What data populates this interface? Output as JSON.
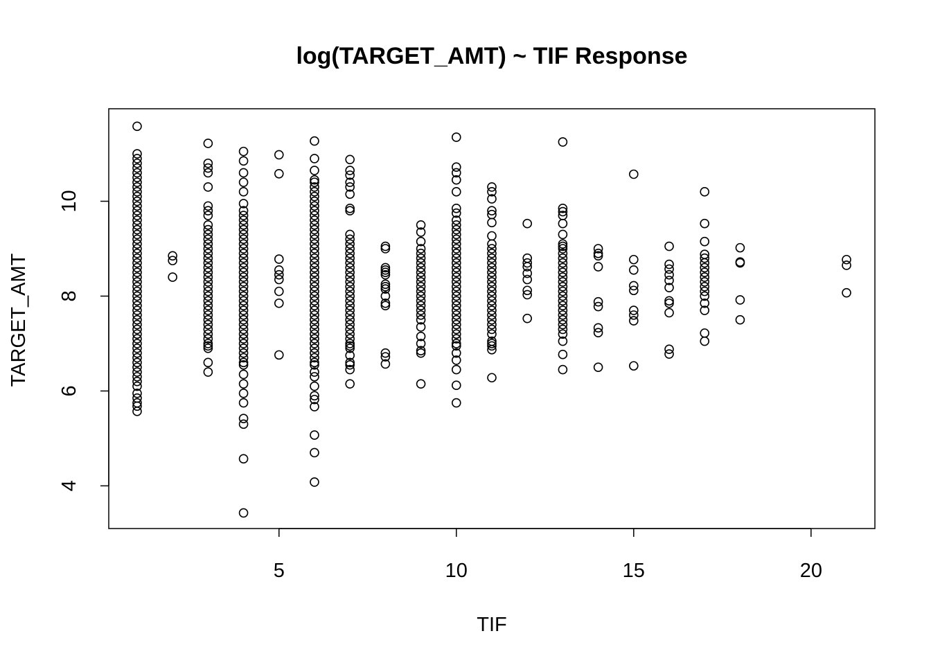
{
  "chart_data": {
    "type": "scatter",
    "title": "log(TARGET_AMT) ~ TIF Response",
    "xlabel": "TIF",
    "ylabel": "TARGET_AMT",
    "xlim": [
      0.2,
      21.8
    ],
    "ylim": [
      3.1,
      11.95
    ],
    "xticks": [
      5,
      10,
      15,
      20
    ],
    "yticks": [
      4,
      6,
      8,
      10
    ],
    "grid": false,
    "marker": "open-circle",
    "groups": [
      {
        "x": 1,
        "y": [
          11.58,
          11.0,
          10.9,
          10.8,
          10.7,
          10.6,
          10.5,
          10.4,
          10.3,
          10.2,
          10.1,
          10.0,
          9.9,
          9.8,
          9.7,
          9.6,
          9.5,
          9.4,
          9.3,
          9.2,
          9.1,
          9.0,
          8.9,
          8.8,
          8.7,
          8.6,
          8.5,
          8.4,
          8.3,
          8.2,
          8.1,
          8.0,
          7.9,
          7.8,
          7.7,
          7.6,
          7.5,
          7.4,
          7.3,
          7.2,
          7.1,
          7.0,
          6.9,
          6.8,
          6.7,
          6.6,
          6.5,
          6.4,
          6.3,
          6.2,
          6.1,
          5.95,
          5.85,
          5.75,
          5.68,
          5.57
        ]
      },
      {
        "x": 2,
        "y": [
          8.85,
          8.75,
          8.4
        ]
      },
      {
        "x": 3,
        "y": [
          11.22,
          10.8,
          10.7,
          10.6,
          10.3,
          9.9,
          9.8,
          9.7,
          9.5,
          9.4,
          9.3,
          9.2,
          9.1,
          9.0,
          8.9,
          8.8,
          8.7,
          8.6,
          8.5,
          8.4,
          8.3,
          8.2,
          8.1,
          8.0,
          7.9,
          7.8,
          7.7,
          7.6,
          7.5,
          7.4,
          7.3,
          7.2,
          7.1,
          7.0,
          6.95,
          6.9,
          6.6,
          6.4
        ]
      },
      {
        "x": 4,
        "y": [
          11.05,
          10.85,
          10.6,
          10.4,
          10.2,
          9.95,
          9.8,
          9.7,
          9.6,
          9.5,
          9.4,
          9.3,
          9.2,
          9.1,
          9.0,
          8.9,
          8.8,
          8.7,
          8.6,
          8.5,
          8.4,
          8.3,
          8.2,
          8.1,
          8.0,
          7.9,
          7.8,
          7.7,
          7.6,
          7.5,
          7.4,
          7.3,
          7.2,
          7.1,
          7.0,
          6.9,
          6.8,
          6.7,
          6.6,
          6.55,
          6.35,
          6.15,
          5.95,
          5.75,
          5.42,
          5.3,
          4.57,
          3.43
        ]
      },
      {
        "x": 5,
        "y": [
          10.98,
          10.58,
          8.78,
          8.55,
          8.45,
          8.35,
          8.1,
          7.85,
          6.76
        ]
      },
      {
        "x": 6,
        "y": [
          11.27,
          10.9,
          10.65,
          10.45,
          10.4,
          10.3,
          10.2,
          10.1,
          10.0,
          9.9,
          9.8,
          9.7,
          9.6,
          9.5,
          9.4,
          9.3,
          9.2,
          9.1,
          9.0,
          8.9,
          8.8,
          8.7,
          8.6,
          8.5,
          8.4,
          8.3,
          8.2,
          8.1,
          8.0,
          7.9,
          7.8,
          7.7,
          7.6,
          7.5,
          7.4,
          7.3,
          7.2,
          7.1,
          7.0,
          6.9,
          6.8,
          6.7,
          6.6,
          6.55,
          6.4,
          6.3,
          6.1,
          5.9,
          5.82,
          5.67,
          5.07,
          4.7,
          4.08
        ]
      },
      {
        "x": 7,
        "y": [
          10.88,
          10.65,
          10.55,
          10.4,
          10.3,
          10.15,
          9.85,
          9.8,
          9.3,
          9.2,
          9.1,
          9.0,
          8.9,
          8.8,
          8.7,
          8.6,
          8.5,
          8.4,
          8.3,
          8.2,
          8.1,
          8.0,
          7.9,
          7.8,
          7.7,
          7.6,
          7.5,
          7.4,
          7.3,
          7.2,
          7.1,
          7.0,
          6.95,
          6.9,
          6.75,
          6.6,
          6.55,
          6.45,
          6.15
        ]
      },
      {
        "x": 8,
        "y": [
          9.05,
          9.0,
          8.6,
          8.55,
          8.5,
          8.45,
          8.25,
          8.2,
          8.15,
          8.0,
          7.85,
          7.8,
          6.8,
          6.72,
          6.57
        ]
      },
      {
        "x": 9,
        "y": [
          9.5,
          9.35,
          9.15,
          9.0,
          8.9,
          8.8,
          8.7,
          8.6,
          8.5,
          8.4,
          8.3,
          8.2,
          8.1,
          8.0,
          7.9,
          7.8,
          7.7,
          7.6,
          7.5,
          7.35,
          7.15,
          7.0,
          6.85,
          6.8,
          6.15
        ]
      },
      {
        "x": 10,
        "y": [
          11.35,
          10.72,
          10.6,
          10.45,
          10.2,
          9.85,
          9.75,
          9.6,
          9.5,
          9.4,
          9.3,
          9.2,
          9.1,
          9.0,
          8.9,
          8.8,
          8.7,
          8.6,
          8.5,
          8.4,
          8.3,
          8.2,
          8.1,
          8.0,
          7.9,
          7.8,
          7.7,
          7.6,
          7.5,
          7.4,
          7.3,
          7.2,
          7.1,
          7.0,
          6.95,
          6.8,
          6.65,
          6.45,
          6.12,
          5.75
        ]
      },
      {
        "x": 11,
        "y": [
          10.3,
          10.2,
          10.05,
          9.8,
          9.72,
          9.55,
          9.27,
          9.1,
          9.0,
          8.9,
          8.8,
          8.7,
          8.6,
          8.5,
          8.4,
          8.3,
          8.2,
          8.1,
          8.0,
          7.9,
          7.8,
          7.7,
          7.6,
          7.5,
          7.4,
          7.3,
          7.2,
          7.05,
          7.0,
          6.95,
          6.87,
          6.28
        ]
      },
      {
        "x": 12,
        "y": [
          9.53,
          8.8,
          8.7,
          8.62,
          8.48,
          8.35,
          8.12,
          8.03,
          7.53
        ]
      },
      {
        "x": 13,
        "y": [
          11.25,
          9.85,
          9.78,
          9.7,
          9.53,
          9.3,
          9.1,
          9.05,
          9.0,
          8.9,
          8.8,
          8.7,
          8.6,
          8.5,
          8.4,
          8.3,
          8.2,
          8.1,
          8.0,
          7.9,
          7.8,
          7.7,
          7.6,
          7.5,
          7.4,
          7.3,
          7.2,
          7.05,
          6.77,
          6.45
        ]
      },
      {
        "x": 14,
        "y": [
          9.0,
          8.9,
          8.85,
          8.62,
          7.88,
          7.78,
          7.33,
          7.23,
          6.5
        ]
      },
      {
        "x": 15,
        "y": [
          10.57,
          8.77,
          8.55,
          8.22,
          8.12,
          7.7,
          7.6,
          7.48,
          6.53
        ]
      },
      {
        "x": 16,
        "y": [
          9.05,
          8.67,
          8.57,
          8.45,
          8.33,
          8.18,
          7.9,
          7.85,
          7.65,
          6.88,
          6.78
        ]
      },
      {
        "x": 17,
        "y": [
          10.2,
          9.53,
          9.15,
          8.88,
          8.8,
          8.7,
          8.6,
          8.5,
          8.4,
          8.3,
          8.2,
          8.1,
          8.0,
          7.85,
          7.7,
          7.22,
          7.05
        ]
      },
      {
        "x": 18,
        "y": [
          9.02,
          8.72,
          8.7,
          7.92,
          7.5
        ]
      },
      {
        "x": 21,
        "y": [
          8.77,
          8.65,
          8.07
        ]
      }
    ]
  }
}
